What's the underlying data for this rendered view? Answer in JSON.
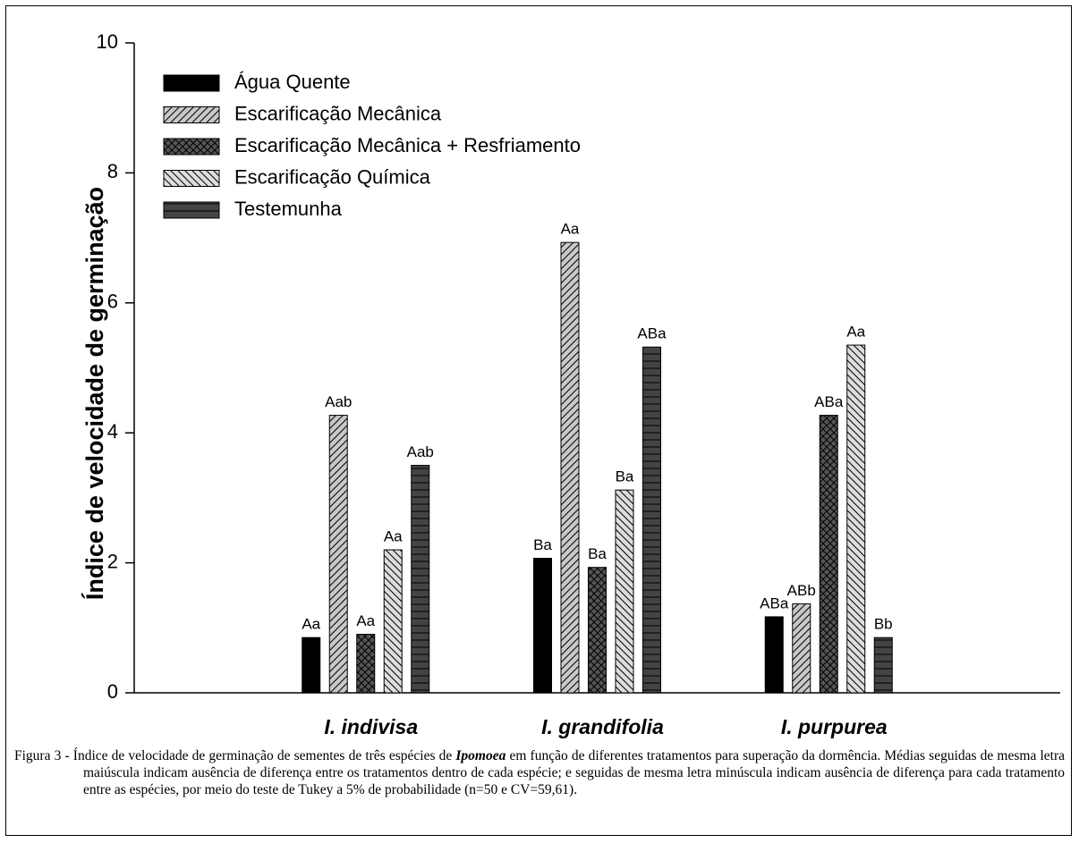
{
  "chart_data": {
    "type": "bar",
    "y_label": "Índice de velocidade de germinação",
    "categories": [
      "I. indivisa",
      "I. grandifolia",
      "I. purpurea"
    ],
    "series": [
      {
        "name": "Água Quente",
        "color": "#000000",
        "pattern": "solid",
        "values": [
          0.85,
          2.07,
          1.17
        ],
        "labels": [
          "Aa",
          "Ba",
          "ABa"
        ]
      },
      {
        "name": "Escarificação Mecânica",
        "color": "#c8c8c8",
        "pattern": "forward-diagonal",
        "values": [
          4.27,
          6.93,
          1.37
        ],
        "labels": [
          "Aab",
          "Aa",
          "ABb"
        ]
      },
      {
        "name": "Escarificação Mecânica + Resfriamento",
        "color": "#555555",
        "pattern": "crosshatch",
        "values": [
          0.9,
          1.93,
          4.27
        ],
        "labels": [
          "Aa",
          "Ba",
          "ABa"
        ]
      },
      {
        "name": "Escarificação Química",
        "color": "#dddddd",
        "pattern": "back-diagonal",
        "values": [
          2.2,
          3.12,
          5.35
        ],
        "labels": [
          "Aa",
          "Ba",
          "Aa"
        ]
      },
      {
        "name": "Testemunha",
        "color": "#444444",
        "pattern": "horizontal",
        "values": [
          3.5,
          5.32,
          0.85
        ],
        "labels": [
          "Aab",
          "ABa",
          "Bb"
        ]
      }
    ],
    "ylim": [
      0,
      10
    ],
    "yticks": [
      0,
      2,
      4,
      6,
      8,
      10
    ],
    "grid": false,
    "legend": "upper left"
  },
  "caption": {
    "before": "Figura 3 - Índice de velocidade de germinação de sementes de três espécies de ",
    "emphasis": "Ipomoea",
    "after": " em função de diferentes tratamentos para superação da dormência. Médias seguidas de mesma letra maiúscula indicam ausência de diferença entre os tratamentos dentro de cada espécie; e seguidas de mesma letra minúscula indicam ausência de diferença para cada tratamento entre as espécies, por meio do teste de Tukey a 5% de probabilidade (n=50 e CV=59,61)."
  }
}
